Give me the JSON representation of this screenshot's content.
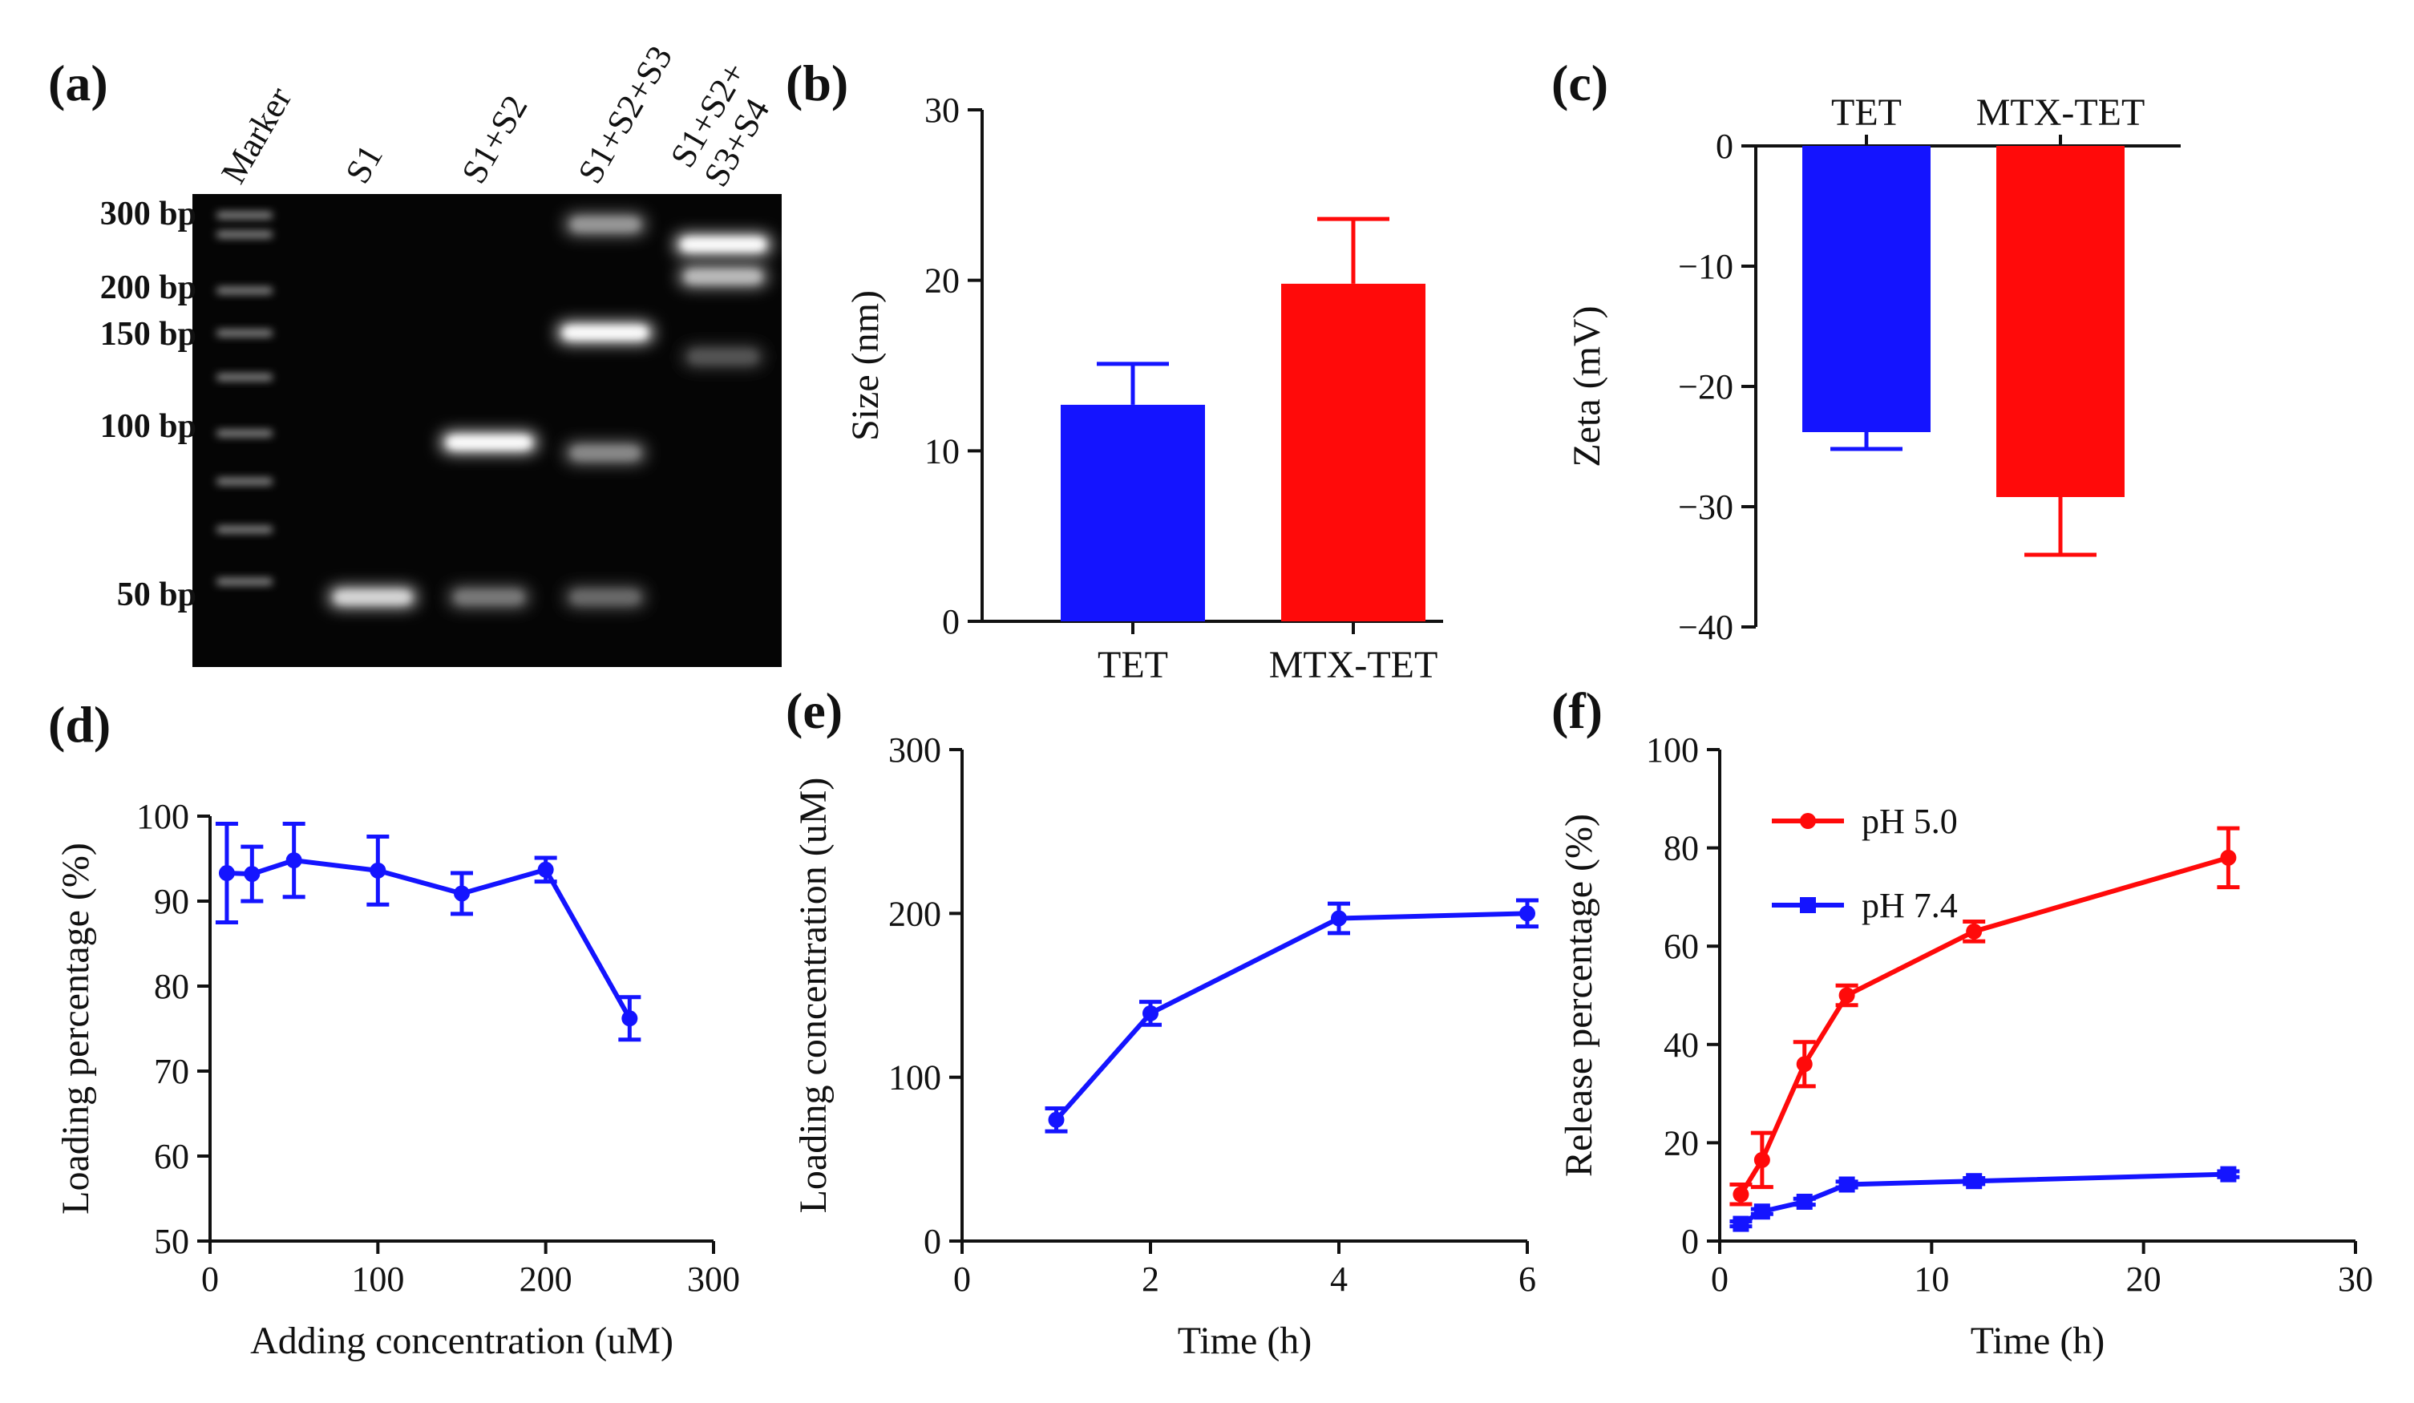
{
  "chart_data": [
    {
      "panel": "(a)",
      "type": "gel",
      "lanes": [
        "Marker",
        "S1",
        "S1+S2",
        "S1+S2+S3",
        "S1+S2+\nS3+S4"
      ],
      "marker_labels": [
        "300 bp",
        "200 bp",
        "150 bp",
        "100 bp",
        "50 bp"
      ]
    },
    {
      "panel": "(b)",
      "type": "bar",
      "categories": [
        "TET",
        "MTX-TET"
      ],
      "values": [
        12.7,
        19.8
      ],
      "errors": [
        2.4,
        3.8
      ],
      "colors": [
        "#1414ff",
        "#ff0a0a"
      ],
      "ylabel": "Size (nm)",
      "ylim": [
        0,
        30
      ],
      "yticks": [
        0,
        10,
        20,
        30
      ]
    },
    {
      "panel": "(c)",
      "type": "bar",
      "categories": [
        "TET",
        "MTX-TET"
      ],
      "values": [
        -23.8,
        -29.2
      ],
      "errors": [
        1.4,
        4.8
      ],
      "colors": [
        "#1414ff",
        "#ff0a0a"
      ],
      "ylabel": "Zeta (mV)",
      "ylim": [
        -40,
        0
      ],
      "yticks": [
        0,
        -10,
        -20,
        -30,
        -40
      ]
    },
    {
      "panel": "(d)",
      "type": "line",
      "x": [
        10,
        25,
        50,
        100,
        150,
        200,
        250
      ],
      "y": [
        93.3,
        93.2,
        94.8,
        93.6,
        90.9,
        93.7,
        76.2
      ],
      "errors": [
        5.8,
        3.2,
        4.3,
        4.0,
        2.4,
        1.4,
        2.5
      ],
      "color": "#1414ff",
      "xlabel": "Adding concentration (uM)",
      "ylabel": "Loading percentage (%)",
      "xlim": [
        0,
        300
      ],
      "ylim": [
        50,
        100
      ],
      "xticks": [
        0,
        100,
        200,
        300
      ],
      "yticks": [
        50,
        60,
        70,
        80,
        90,
        100
      ]
    },
    {
      "panel": "(e)",
      "type": "line",
      "x": [
        1,
        2,
        4,
        6
      ],
      "y": [
        74,
        139,
        197,
        200
      ],
      "errors": [
        7,
        7,
        9,
        8
      ],
      "color": "#1414ff",
      "xlabel": "Time (h)",
      "ylabel": "Loading concentration (uM)",
      "xlim": [
        0,
        6
      ],
      "ylim": [
        0,
        300
      ],
      "xticks": [
        0,
        2,
        4,
        6
      ],
      "yticks": [
        0,
        100,
        200,
        300
      ]
    },
    {
      "panel": "(f)",
      "type": "line",
      "xlabel": "Time (h)",
      "ylabel": "Release percentage (%)",
      "xlim": [
        0,
        30
      ],
      "ylim": [
        0,
        100
      ],
      "xticks": [
        0,
        10,
        20,
        30
      ],
      "yticks": [
        0,
        20,
        40,
        60,
        80,
        100
      ],
      "legend": "top-left",
      "series": [
        {
          "name": "pH 5.0",
          "color": "#ff0a0a",
          "marker": "circle",
          "x": [
            1,
            2,
            4,
            6,
            12,
            24
          ],
          "y": [
            9.5,
            16.5,
            36,
            50,
            63,
            78
          ],
          "errors": [
            2,
            5.5,
            4.5,
            2,
            2,
            6
          ]
        },
        {
          "name": "pH 7.4",
          "color": "#1414ff",
          "marker": "square",
          "x": [
            1,
            2,
            4,
            6,
            12,
            24
          ],
          "y": [
            3.5,
            6,
            8,
            11.5,
            12.2,
            13.6
          ],
          "errors": [
            0.5,
            0.5,
            0.6,
            0.6,
            0.6,
            0.6
          ]
        }
      ]
    }
  ]
}
